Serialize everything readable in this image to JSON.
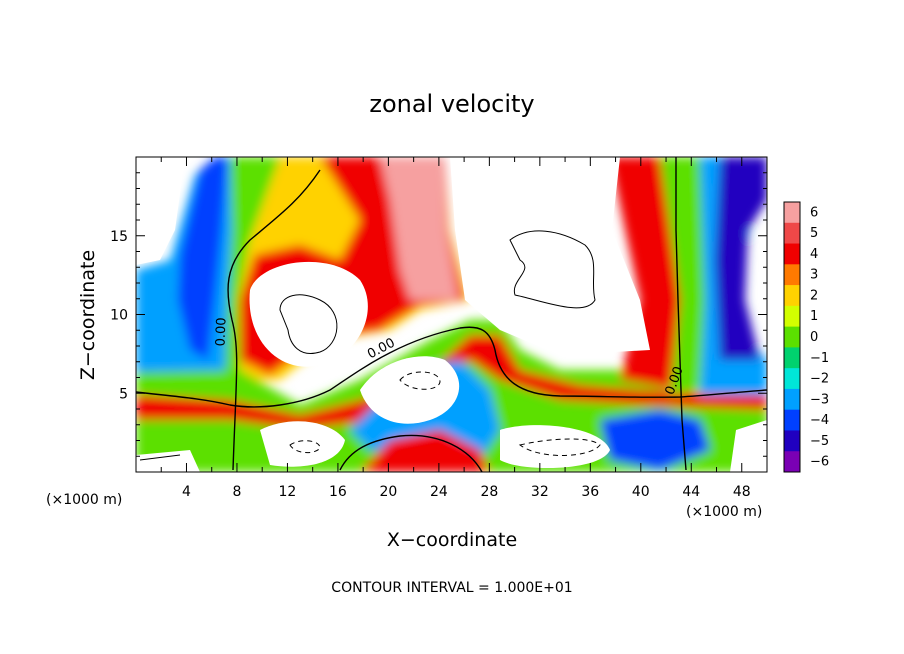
{
  "chart_data": {
    "type": "heatmap",
    "title": "zonal velocity",
    "xlabel": "X−coordinate",
    "ylabel": "Z−coordinate",
    "x_unit_label": "(×1000 m)",
    "y_unit_label": "(×1000 m)",
    "xlim": [
      0,
      50
    ],
    "ylim": [
      0,
      20
    ],
    "x_ticks": [
      4,
      8,
      12,
      16,
      20,
      24,
      28,
      32,
      36,
      40,
      44,
      48
    ],
    "y_ticks": [
      5,
      10,
      15
    ],
    "colorbar": {
      "levels": [
        6,
        5,
        4,
        3,
        2,
        1,
        0,
        -1,
        -2,
        -3,
        -4,
        -5,
        -6
      ],
      "labels": [
        "6",
        "5",
        "4",
        "3",
        "2",
        "1",
        "0",
        "−1",
        "−2",
        "−3",
        "−4",
        "−5",
        "−6"
      ],
      "colors": [
        "#f6a0a0",
        "#ef4848",
        "#f00000",
        "#ff7a00",
        "#ffd200",
        "#d2ff00",
        "#5be000",
        "#00d26e",
        "#00e6d8",
        "#00a0ff",
        "#0040ff",
        "#2000c0",
        "#7a00b4"
      ]
    },
    "contour_label": "0.00",
    "footnote": "CONTOUR INTERVAL = 1.000E+01"
  }
}
